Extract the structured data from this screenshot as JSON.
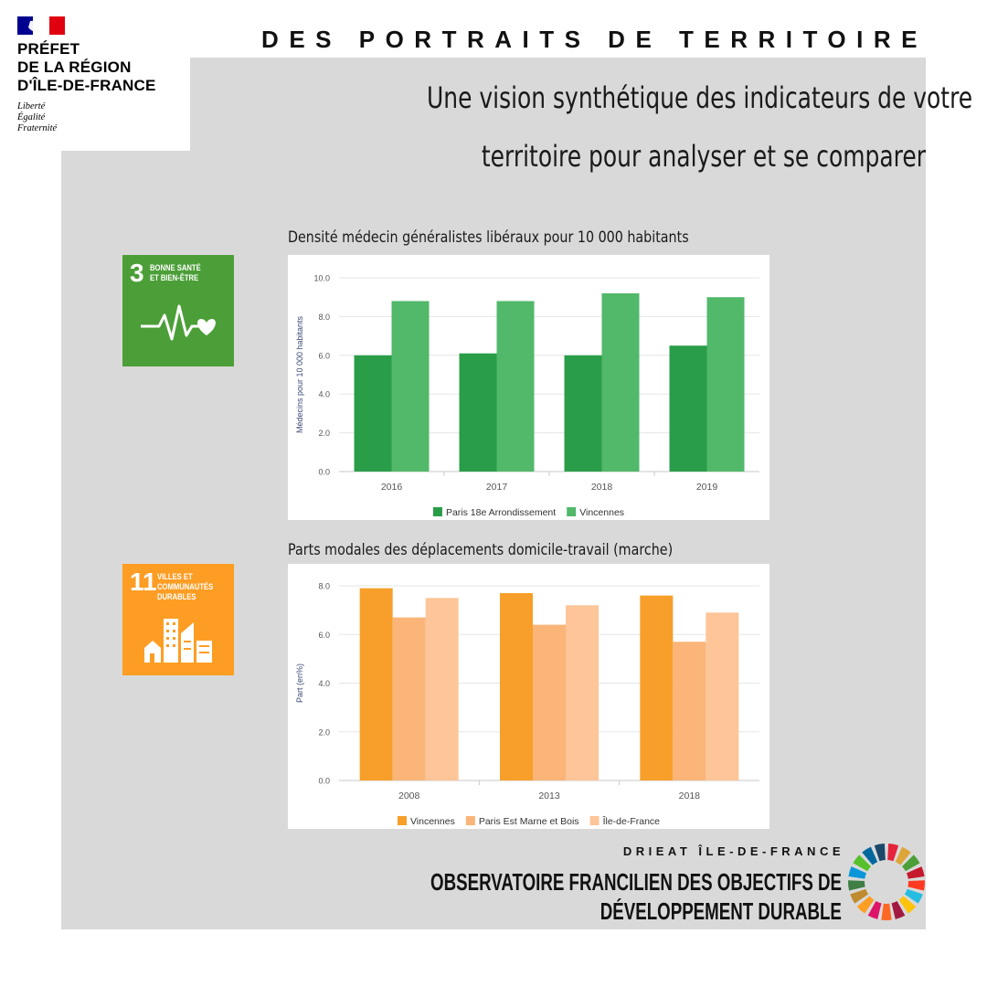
{
  "logo": {
    "lines": [
      "PRÉFET",
      "DE LA RÉGION",
      "D'ÎLE-DE-FRANCE"
    ],
    "motto": [
      "Liberté",
      "Égalité",
      "Fraternité"
    ]
  },
  "header": {
    "title": "DES PORTRAITS DE TERRITOIRE",
    "subtitle_lines": [
      "Une vision synthétique des indicateurs de votre",
      "territoire pour analyser et se comparer"
    ]
  },
  "sdg": [
    {
      "number": "3",
      "label_lines": [
        "BONNE SANTÉ",
        "ET BIEN-ÊTRE"
      ],
      "color": "#4c9f38"
    },
    {
      "number": "11",
      "label_lines": [
        "VILLES ET",
        "COMMUNAUTÉS",
        "DURABLES"
      ],
      "color": "#fd9d24"
    }
  ],
  "chart_data": [
    {
      "type": "bar",
      "title": "Densité médecin généralistes libéraux pour 10 000 habitants",
      "ylabel": "Médecins pour 10 000 habitants",
      "xlabel": "",
      "categories": [
        "2016",
        "2017",
        "2018",
        "2019"
      ],
      "yticks": [
        "0.0",
        "2.0",
        "4.0",
        "6.0",
        "8.0",
        "10.0"
      ],
      "ylim": [
        0,
        10
      ],
      "grid": true,
      "legend_position": "bottom",
      "series": [
        {
          "name": "Paris 18e Arrondissement",
          "values": [
            6.0,
            6.1,
            6.0,
            6.5
          ],
          "color": "#2a9d48"
        },
        {
          "name": "Vincennes",
          "values": [
            8.8,
            8.8,
            9.2,
            9.0
          ],
          "color": "#52b86a"
        }
      ]
    },
    {
      "type": "bar",
      "title": "Parts modales des déplacements domicile-travail (marche)",
      "ylabel": "Part (en%)",
      "xlabel": "",
      "categories": [
        "2008",
        "2013",
        "2018"
      ],
      "yticks": [
        "0.0",
        "2.0",
        "4.0",
        "6.0",
        "8.0"
      ],
      "ylim": [
        0,
        8
      ],
      "grid": true,
      "legend_position": "bottom",
      "series": [
        {
          "name": "Vincennes",
          "values": [
            7.9,
            7.7,
            7.6
          ],
          "color": "#f79f2a"
        },
        {
          "name": "Paris Est Marne et Bois",
          "values": [
            6.7,
            6.4,
            5.7
          ],
          "color": "#fbb579"
        },
        {
          "name": "Île-de-France",
          "values": [
            7.5,
            7.2,
            6.9
          ],
          "color": "#fdc598"
        }
      ]
    }
  ],
  "footer": {
    "brand": "DRIEAT ÎLE-DE-FRANCE",
    "lines": [
      "OBSERVATOIRE FRANCILIEN DES OBJECTIFS DE",
      "DÉVELOPPEMENT DURABLE"
    ]
  }
}
